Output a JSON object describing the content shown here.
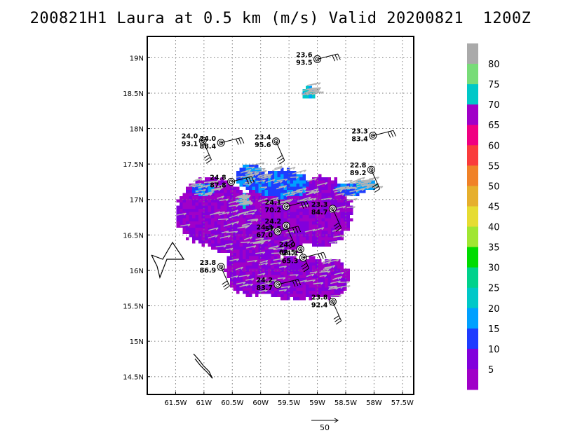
{
  "title": "200821H1 Laura at 0.5 km (m/s) Valid 20200821  1200Z",
  "map": {
    "lon_range": [
      -62.0,
      -57.3
    ],
    "lat_range": [
      14.25,
      19.3
    ],
    "x_ticks": [
      {
        "lon": -61.5,
        "label": "61.5W"
      },
      {
        "lon": -61.0,
        "label": "61W"
      },
      {
        "lon": -60.5,
        "label": "60.5W"
      },
      {
        "lon": -60.0,
        "label": "60W"
      },
      {
        "lon": -59.5,
        "label": "59.5W"
      },
      {
        "lon": -59.0,
        "label": "59W"
      },
      {
        "lon": -58.5,
        "label": "58.5W"
      },
      {
        "lon": -58.0,
        "label": "58W"
      },
      {
        "lon": -57.5,
        "label": "57.5W"
      }
    ],
    "y_ticks": [
      {
        "lat": 14.5,
        "label": "14.5N"
      },
      {
        "lat": 15.0,
        "label": "15N"
      },
      {
        "lat": 15.5,
        "label": "15.5N"
      },
      {
        "lat": 16.0,
        "label": "16N"
      },
      {
        "lat": 16.5,
        "label": "16.5N"
      },
      {
        "lat": 17.0,
        "label": "17N"
      },
      {
        "lat": 17.5,
        "label": "17.5N"
      },
      {
        "lat": 18.0,
        "label": "18N"
      },
      {
        "lat": 18.5,
        "label": "18.5N"
      },
      {
        "lat": 19.0,
        "label": "19N"
      }
    ],
    "grid": "dotted"
  },
  "colorbar": {
    "labels": [
      "5",
      "10",
      "15",
      "20",
      "25",
      "30",
      "35",
      "40",
      "45",
      "50",
      "55",
      "60",
      "65",
      "70",
      "75",
      "80"
    ],
    "colors": [
      "#a000c8",
      "#8200dc",
      "#1e3cff",
      "#00a0ff",
      "#00c8c8",
      "#00d28c",
      "#00dc00",
      "#a0e632",
      "#e6dc32",
      "#e6af2d",
      "#f08228",
      "#fa3c3c",
      "#f00082",
      "#a000c8",
      "#00c8c8",
      "#78dc78",
      "#aaaaaa"
    ]
  },
  "stations": [
    {
      "lon": -59.0,
      "lat": 18.98,
      "t": "23.6",
      "p": "93.5"
    },
    {
      "lon": -61.02,
      "lat": 17.83,
      "t": "24.0",
      "p": "93.1"
    },
    {
      "lon": -60.7,
      "lat": 17.8,
      "t": "24.0",
      "p": "88.4"
    },
    {
      "lon": -59.73,
      "lat": 17.82,
      "t": "23.4",
      "p": "95.6"
    },
    {
      "lon": -58.02,
      "lat": 17.9,
      "t": "23.3",
      "p": "83.4"
    },
    {
      "lon": -58.05,
      "lat": 17.42,
      "t": "22.8",
      "p": "89.2"
    },
    {
      "lon": -60.52,
      "lat": 17.25,
      "t": "24.8",
      "p": "87.8"
    },
    {
      "lon": -58.73,
      "lat": 16.87,
      "t": "23.3",
      "p": "84.7"
    },
    {
      "lon": -59.55,
      "lat": 16.9,
      "t": "24.1",
      "p": "70.2"
    },
    {
      "lon": -59.55,
      "lat": 16.63,
      "t": "24.2",
      "p": "57.5"
    },
    {
      "lon": -59.7,
      "lat": 16.55,
      "t": "24.3",
      "p": "67.0"
    },
    {
      "lon": -59.3,
      "lat": 16.3,
      "t": "24.0",
      "p": "62.5"
    },
    {
      "lon": -59.25,
      "lat": 16.18,
      "t": "24.1",
      "p": "65.3"
    },
    {
      "lon": -60.7,
      "lat": 16.05,
      "t": "23.8",
      "p": "86.9"
    },
    {
      "lon": -59.7,
      "lat": 15.8,
      "t": "24.2",
      "p": "83.7"
    },
    {
      "lon": -58.73,
      "lat": 15.56,
      "t": "23.8",
      "p": "92.4"
    }
  ],
  "reference_vector": {
    "label": "50"
  }
}
